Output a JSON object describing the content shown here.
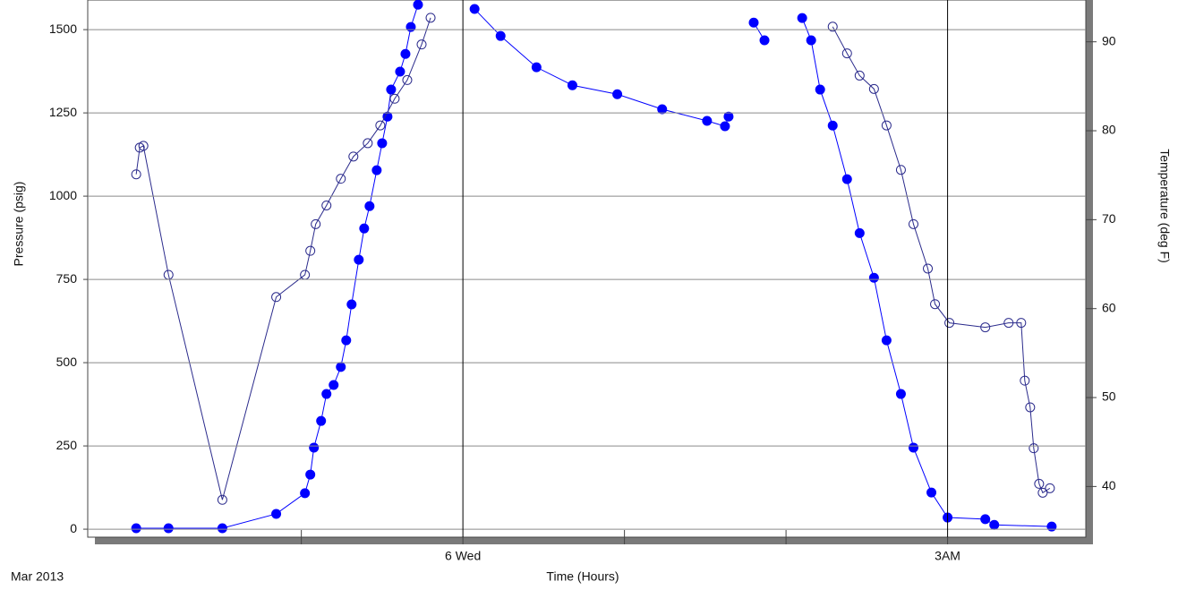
{
  "chart_data": {
    "type": "line",
    "x_label": "Time (Hours)",
    "y_label": "Pressure (psig)",
    "y2_label": "Temperature (deg F)",
    "date_label": "Mar 2013",
    "xlim": [
      -20.9,
      34.7
    ],
    "xticks": [
      {
        "value": 0,
        "label": "6 Wed"
      },
      {
        "value": 27,
        "label": "3AM"
      }
    ],
    "xminorticks": [
      -9,
      9,
      18
    ],
    "ylim": [
      -24,
      1589
    ],
    "yticks": [
      0,
      250,
      500,
      750,
      1000,
      1250,
      1500
    ],
    "y2lim": [
      34.3,
      94.7
    ],
    "y2ticks": [
      40,
      50,
      60,
      70,
      80,
      90
    ],
    "grid": true,
    "series": [
      {
        "color": "#0000ff",
        "marker": "filled",
        "axis": "y",
        "x": [
          -18.2,
          -16.4,
          -13.4,
          -10.4,
          -8.8,
          -8.5,
          -8.3,
          -7.9,
          -7.6,
          -7.2,
          -6.8,
          -6.5,
          -6.2,
          -5.8,
          -5.5,
          -5.2,
          -4.8,
          -4.5,
          -4.2,
          -4.0,
          -3.5,
          -3.2,
          -2.9,
          -2.5,
          null,
          0.65,
          2.1,
          4.1,
          6.1,
          8.6,
          11.1,
          13.6,
          14.6,
          14.8,
          null,
          16.2,
          16.8,
          null,
          18.9,
          19.4,
          19.9,
          20.6,
          21.4,
          22.1,
          22.9,
          23.6,
          24.4,
          25.1,
          26.1,
          27.0,
          29.1,
          29.6,
          32.8
        ],
        "values": [
          3,
          3,
          3,
          46,
          108,
          164,
          245,
          325,
          406,
          433,
          487,
          567,
          675,
          809,
          903,
          970,
          1078,
          1159,
          1239,
          1320,
          1374,
          1427,
          1508,
          1575,
          null,
          1562,
          1481,
          1387,
          1333,
          1306,
          1261,
          1226,
          1210,
          1239,
          null,
          1521,
          1468,
          null,
          1535,
          1468,
          1320,
          1212,
          1051,
          889,
          755,
          567,
          406,
          245,
          110,
          35,
          30,
          13,
          8
        ]
      },
      {
        "color": "#2b2b8c",
        "marker": "open",
        "axis": "y2",
        "x": [
          -18.2,
          -18.0,
          -17.8,
          -16.4,
          -13.4,
          -10.4,
          -8.8,
          -8.5,
          -8.2,
          -7.6,
          -6.8,
          -6.1,
          -5.3,
          -4.6,
          -3.8,
          -3.1,
          -2.3,
          -1.8,
          null,
          20.6,
          21.4,
          22.1,
          22.9,
          23.6,
          24.4,
          25.1,
          25.9,
          26.3,
          27.1,
          29.1,
          30.4,
          31.1,
          31.3,
          31.6,
          31.8,
          32.1,
          32.3,
          32.7
        ],
        "values": [
          75.1,
          78.1,
          78.3,
          63.8,
          38.5,
          61.3,
          63.8,
          66.5,
          69.5,
          71.6,
          74.6,
          77.1,
          78.6,
          80.6,
          83.6,
          85.7,
          89.7,
          92.7,
          null,
          91.7,
          88.7,
          86.2,
          84.7,
          80.6,
          75.6,
          69.5,
          64.5,
          60.5,
          58.4,
          57.9,
          58.4,
          58.4,
          51.9,
          48.9,
          44.3,
          40.3,
          39.3,
          39.8
        ]
      }
    ]
  }
}
